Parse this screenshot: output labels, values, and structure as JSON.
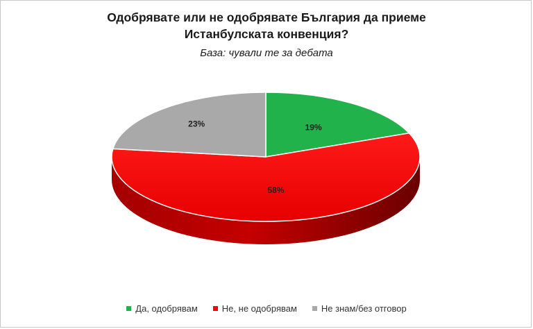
{
  "chart_data": {
    "type": "pie",
    "title_lines": [
      "Одобрявате или не одобрявате България да приеме",
      "Истанбулската конвенция?"
    ],
    "subtitle": "База: чували те за дебата",
    "categories": [
      "Да, одобрявам",
      "Не, не одобрявам",
      "Не знам/без отговор"
    ],
    "values": [
      19,
      58,
      23
    ],
    "labels": [
      "19%",
      "58%",
      "23%"
    ],
    "colors": [
      "#22b24c",
      "#ff0000",
      "#a9a9a9"
    ],
    "legend_position": "bottom"
  }
}
